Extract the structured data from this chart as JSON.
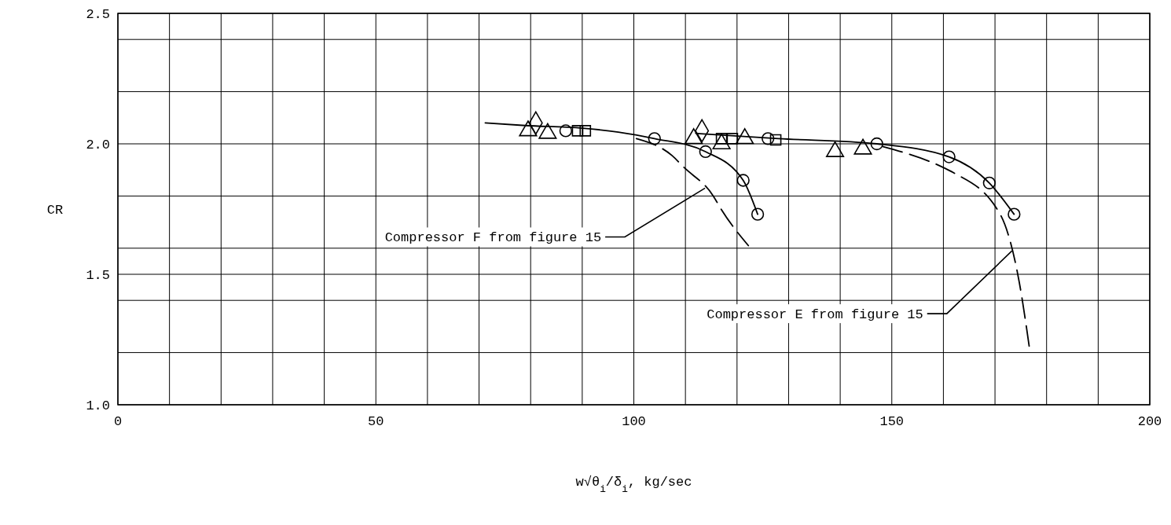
{
  "chart_data": {
    "type": "scatter",
    "xlabel": "w√θ$_{i}$/δ$_{i}$, kg/sec",
    "ylabel": "CR",
    "xlim": [
      0,
      200
    ],
    "ylim": [
      1.0,
      2.5
    ],
    "xticks": [
      0,
      {
        "value": 10,
        "label": null
      },
      {
        "value": 20,
        "label": null
      },
      {
        "value": 30,
        "label": null
      },
      {
        "value": 40,
        "label": null
      },
      50,
      {
        "value": 60,
        "label": null
      },
      {
        "value": 70,
        "label": null
      },
      {
        "value": 80,
        "label": null
      },
      {
        "value": 90,
        "label": null
      },
      100,
      {
        "value": 110,
        "label": null
      },
      {
        "value": 120,
        "label": null
      },
      {
        "value": 130,
        "label": null
      },
      {
        "value": 140,
        "label": null
      },
      150,
      {
        "value": 160,
        "label": null
      },
      {
        "value": 170,
        "label": null
      },
      {
        "value": 180,
        "label": null
      },
      {
        "value": 190,
        "label": null
      },
      200
    ],
    "yticks": [
      {
        "value": 1.0,
        "label": "1.0"
      },
      {
        "value": 1.2,
        "label": null
      },
      {
        "value": 1.4,
        "label": null
      },
      1.5,
      {
        "value": 1.6,
        "label": null
      },
      {
        "value": 1.8,
        "label": null
      },
      {
        "value": 2.0,
        "label": "2.0"
      },
      {
        "value": 2.2,
        "label": null
      },
      {
        "value": 2.4,
        "label": null
      },
      2.5
    ],
    "grid": true,
    "series": [
      {
        "type": "line",
        "color": "#000000",
        "marker": "none",
        "line_style": "solid",
        "x": [
          71.2,
          79,
          90,
          97,
          104.0,
          113.9,
          121.2,
          124.0
        ],
        "values": [
          2.08,
          2.07,
          2.06,
          2.045,
          2.02,
          1.97,
          1.86,
          1.73
        ]
      },
      {
        "type": "line",
        "color": "#000000",
        "marker": "none",
        "line_style": "solid",
        "x": [
          112,
          128,
          147.1,
          161.1,
          168.9,
          173.7
        ],
        "values": [
          2.04,
          2.02,
          2.0,
          1.95,
          1.85,
          1.73
        ]
      },
      {
        "type": "line",
        "color": "#000000",
        "marker": "none",
        "line_style": "dashed",
        "x": [
          100.5,
          107.4,
          109.7,
          115.4,
          116.9,
          122.2
        ],
        "values": [
          2.02,
          1.955,
          1.91,
          1.8,
          1.75,
          1.61
        ]
      },
      {
        "type": "line",
        "color": "#000000",
        "marker": "none",
        "line_style": "dashed",
        "x": [
          148.2,
          159.9,
          161.9,
          171.0,
          174.7,
          176.8
        ],
        "values": [
          1.99,
          1.91,
          1.89,
          1.73,
          1.47,
          1.2
        ]
      },
      {
        "color": "#000000",
        "marker": "circle",
        "x": [
          104.0,
          113.9,
          121.2,
          124.0,
          147.1,
          161.1,
          168.9,
          173.7,
          86.8,
          126.0
        ],
        "values": [
          2.02,
          1.97,
          1.86,
          1.73,
          2.0,
          1.95,
          1.85,
          1.73,
          2.05,
          2.02
        ]
      },
      {
        "color": "#000000",
        "marker": "triangle",
        "x": [
          79.5,
          83.3,
          111.6,
          117.0,
          121.5,
          139.0,
          144.4
        ],
        "values": [
          2.05,
          2.04,
          2.02,
          2.0,
          2.02,
          1.97,
          1.98
        ]
      },
      {
        "color": "#000000",
        "marker": "square",
        "x": [
          89.1,
          90.6,
          117.0,
          119.1,
          127.5
        ],
        "values": [
          2.05,
          2.05,
          2.02,
          2.02,
          2.015
        ]
      },
      {
        "color": "#000000",
        "marker": "diamond",
        "x": [
          81.0,
          113.2
        ],
        "values": [
          2.08,
          2.05
        ]
      }
    ],
    "annotations": [
      {
        "text": "Compressor F from figure 15",
        "x": 113.8,
        "y": 1.83
      },
      {
        "text": "Compressor E from figure 15",
        "x": 173.3,
        "y": 1.59
      }
    ]
  }
}
